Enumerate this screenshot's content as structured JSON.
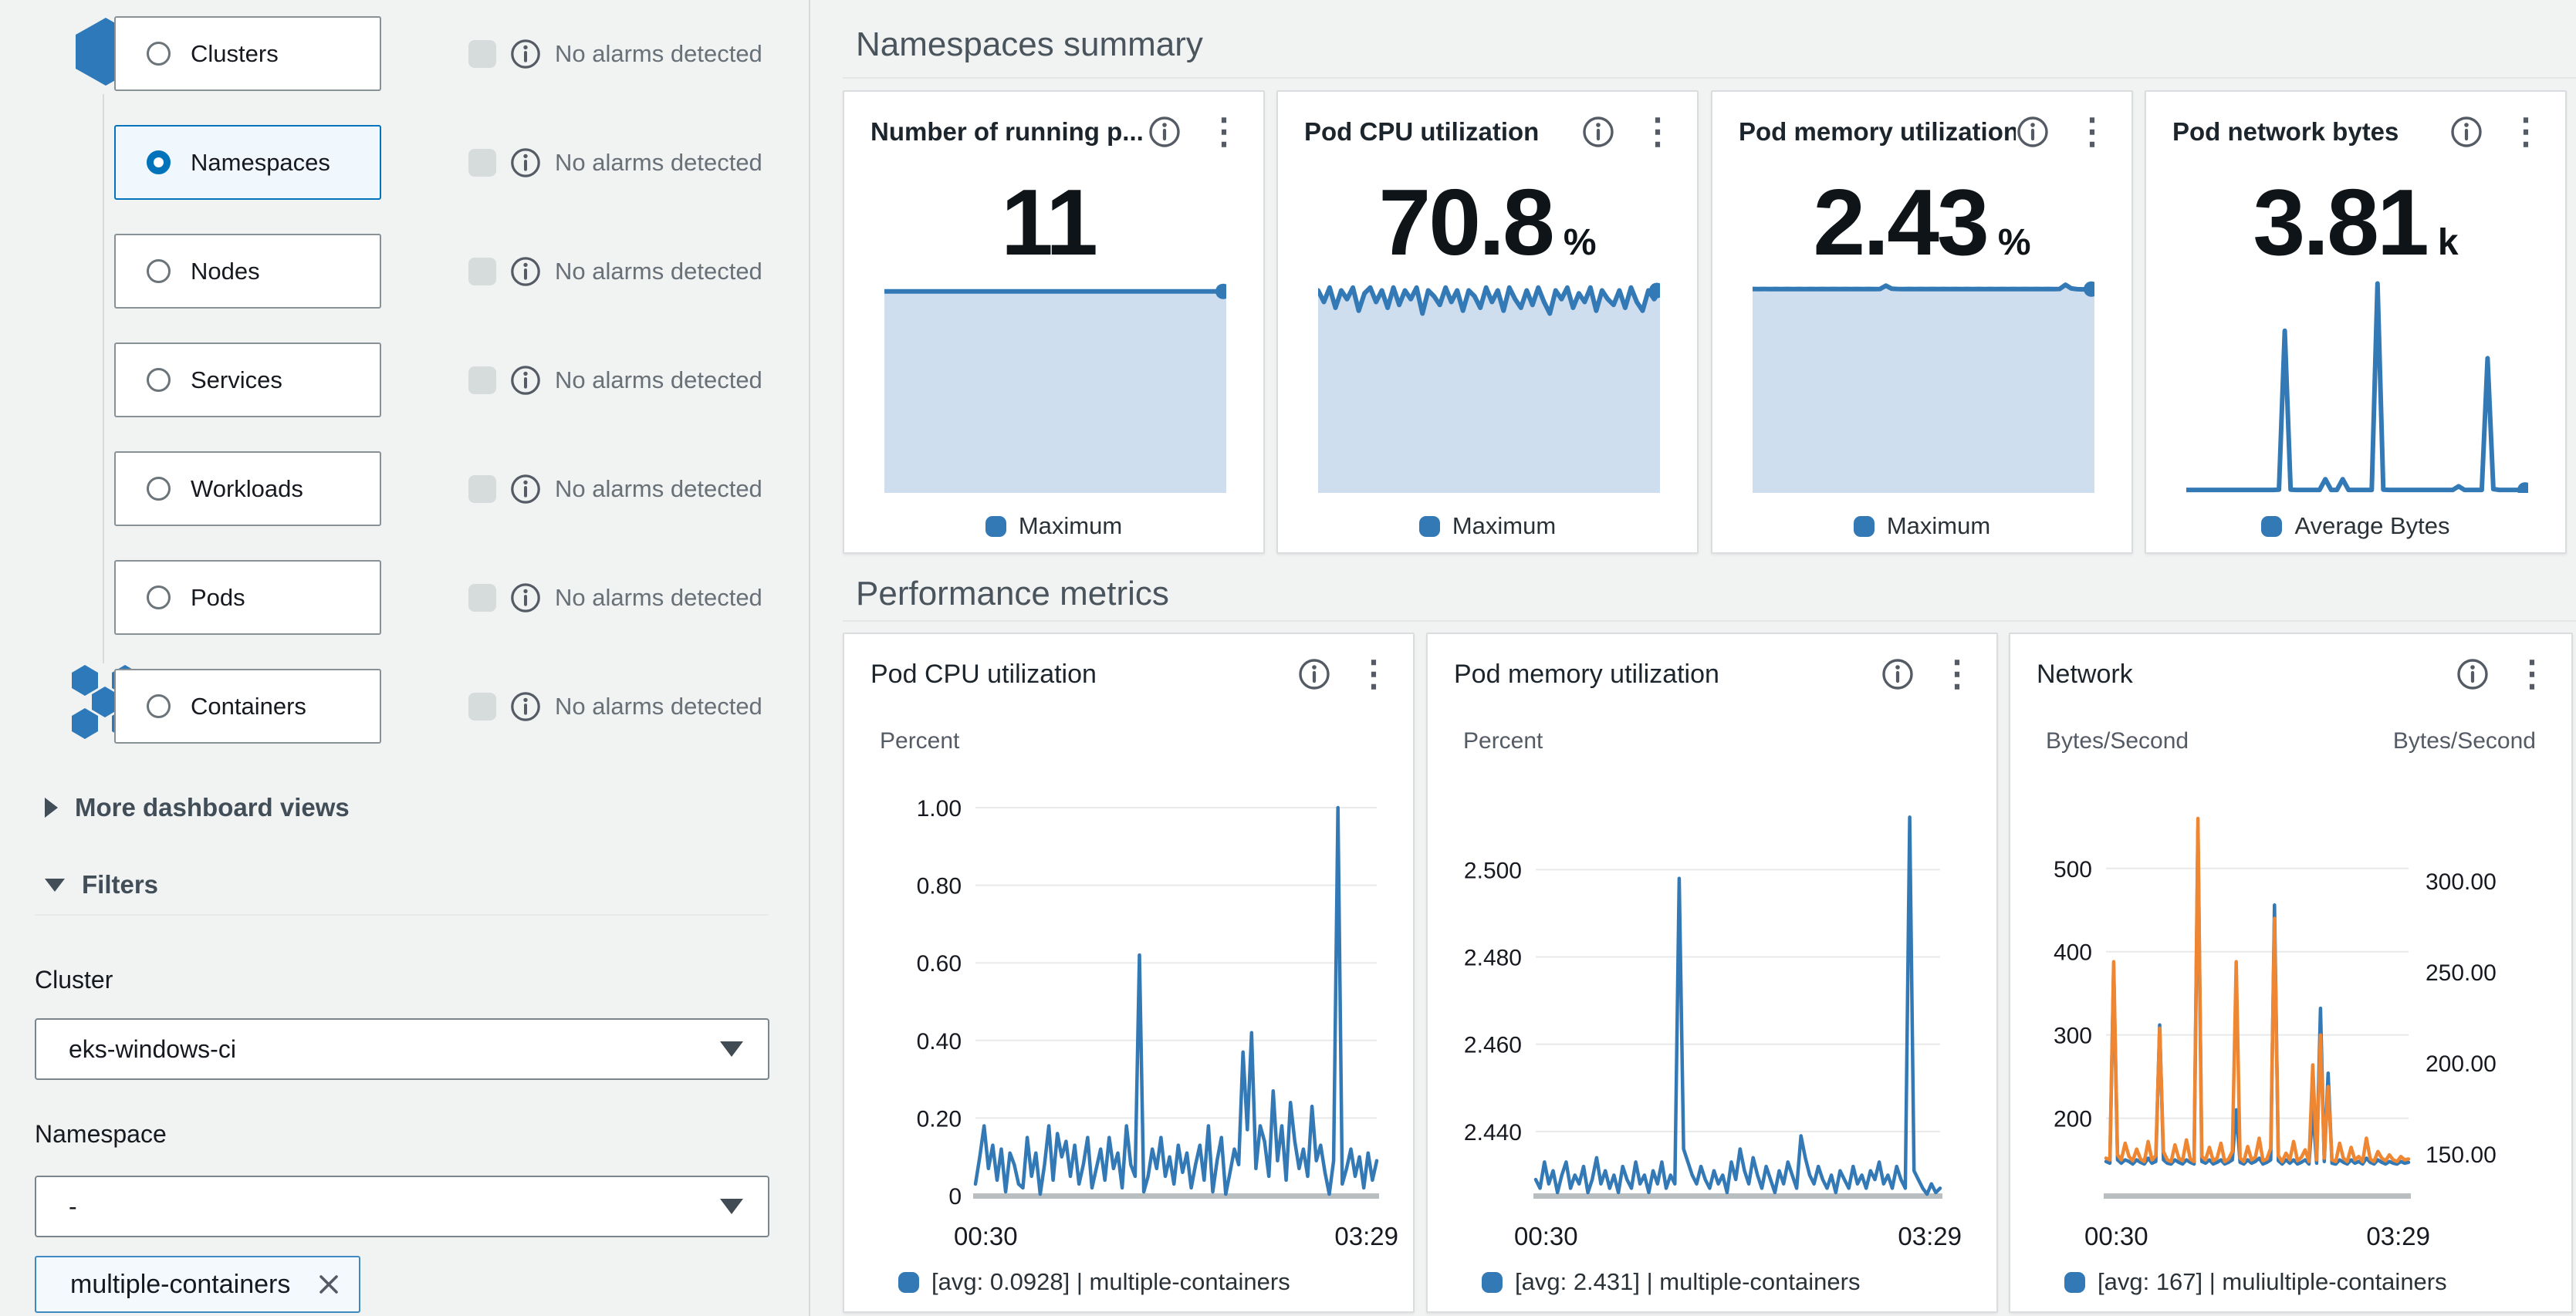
{
  "colors": {
    "chart_blue": "#3379b6",
    "chart_fill": "#cfdeee",
    "chart_orange": "#ee8632",
    "selected_blue": "#0073bb"
  },
  "sidebar": {
    "nav": [
      {
        "label": "Clusters",
        "alarm_text": "No alarms detected",
        "selected": false
      },
      {
        "label": "Namespaces",
        "alarm_text": "No alarms detected",
        "selected": true
      },
      {
        "label": "Nodes",
        "alarm_text": "No alarms detected",
        "selected": false
      },
      {
        "label": "Services",
        "alarm_text": "No alarms detected",
        "selected": false
      },
      {
        "label": "Workloads",
        "alarm_text": "No alarms detected",
        "selected": false
      },
      {
        "label": "Pods",
        "alarm_text": "No alarms detected",
        "selected": false
      },
      {
        "label": "Containers",
        "alarm_text": "No alarms detected",
        "selected": false
      }
    ],
    "more_views_label": "More dashboard views",
    "filters_label": "Filters",
    "cluster_label": "Cluster",
    "cluster_value": "eks-windows-ci",
    "namespace_label": "Namespace",
    "namespace_value": "-",
    "namespace_tag": "multiple-containers"
  },
  "sections": {
    "summary": "Namespaces summary",
    "performance": "Performance metrics"
  },
  "summary_cards": [
    {
      "title": "Number of running p...",
      "value": "11",
      "suffix": "",
      "legend": "Maximum",
      "spark": {
        "fill": true,
        "dot": true,
        "ylim": [
          0,
          12
        ],
        "values": [
          11,
          11,
          11,
          11,
          11,
          11,
          11,
          11,
          11,
          11,
          11,
          11,
          11,
          11,
          11,
          11,
          11,
          11,
          11,
          11,
          11,
          11,
          11,
          11,
          11,
          11,
          11,
          11,
          11,
          11,
          11,
          11,
          11,
          11,
          11,
          11,
          11,
          11,
          11,
          11
        ]
      }
    },
    {
      "title": "Pod CPU utilization",
      "value": "70.8",
      "suffix": "%",
      "legend": "Maximum",
      "spark": {
        "fill": true,
        "dot": true,
        "ylim": [
          0,
          76
        ],
        "values": [
          70,
          66,
          71,
          64,
          70,
          67,
          71,
          63,
          69,
          71,
          66,
          70,
          64,
          71,
          65,
          70,
          67,
          71,
          62,
          70,
          68,
          65,
          71,
          66,
          70,
          63,
          70,
          68,
          64,
          71,
          66,
          70,
          63,
          71,
          67,
          64,
          70,
          65,
          71,
          66,
          62,
          70,
          67,
          71,
          64,
          69,
          66,
          71,
          63,
          70,
          67,
          65,
          70,
          64,
          71,
          66,
          63,
          70,
          67,
          70
        ]
      }
    },
    {
      "title": "Pod memory utilization",
      "value": "2.43",
      "suffix": "%",
      "legend": "Maximum",
      "spark": {
        "fill": true,
        "dot": true,
        "ylim": [
          0,
          2.62
        ],
        "values": [
          2.431,
          2.43,
          2.431,
          2.43,
          2.431,
          2.43,
          2.431,
          2.43,
          2.431,
          2.43,
          2.431,
          2.43,
          2.431,
          2.43,
          2.431,
          2.43,
          2.431,
          2.43,
          2.431,
          2.43,
          2.431,
          2.43,
          2.431,
          2.47,
          2.434,
          2.431,
          2.43,
          2.431,
          2.43,
          2.431,
          2.43,
          2.431,
          2.43,
          2.431,
          2.43,
          2.431,
          2.43,
          2.431,
          2.43,
          2.431,
          2.43,
          2.431,
          2.43,
          2.431,
          2.43,
          2.431,
          2.43,
          2.431,
          2.43,
          2.431,
          2.43,
          2.431,
          2.43,
          2.431,
          2.48,
          2.437,
          2.428,
          2.426,
          2.43,
          2.429
        ]
      }
    },
    {
      "title": "Pod network bytes",
      "value": "3.81",
      "suffix": "k",
      "legend": "Average Bytes",
      "spark": {
        "fill": false,
        "dot": true,
        "ylim": [
          0,
          4000
        ],
        "values": [
          55,
          55,
          55,
          55,
          55,
          55,
          55,
          55,
          55,
          55,
          55,
          55,
          55,
          55,
          55,
          55,
          60,
          2950,
          60,
          55,
          55,
          55,
          55,
          55,
          250,
          55,
          55,
          250,
          55,
          55,
          55,
          55,
          55,
          3810,
          60,
          55,
          55,
          55,
          55,
          55,
          55,
          55,
          55,
          55,
          55,
          55,
          55,
          120,
          55,
          55,
          55,
          55,
          2450,
          70,
          55,
          55,
          55,
          55,
          55,
          55
        ]
      }
    }
  ],
  "perf_charts": [
    {
      "title": "Pod CPU utilization",
      "unit_left": "Percent",
      "unit_right": "",
      "x_left": "00:30",
      "x_right": "03:29",
      "legend": "[avg: 0.0928] | multiple-containers",
      "ylim": [
        0,
        1
      ],
      "yticks": [
        {
          "v": 1,
          "label": "1.00"
        },
        {
          "v": 0.8,
          "label": "0.80"
        },
        {
          "v": 0.6,
          "label": "0.60"
        },
        {
          "v": 0.4,
          "label": "0.40"
        },
        {
          "v": 0.2,
          "label": "0.20"
        },
        {
          "v": 0,
          "label": "0"
        }
      ],
      "right_ticks": [],
      "series": [
        {
          "color": "blue",
          "values": [
            0.03,
            0.1,
            0.18,
            0.07,
            0.13,
            0.04,
            0.12,
            0.01,
            0.11,
            0.08,
            0.03,
            0.02,
            0.15,
            0.05,
            0.11,
            0.0,
            0.08,
            0.18,
            0.04,
            0.16,
            0.1,
            0.14,
            0.05,
            0.13,
            0.03,
            0.08,
            0.15,
            0.02,
            0.07,
            0.12,
            0.04,
            0.15,
            0.07,
            0.11,
            0.02,
            0.18,
            0.08,
            0.05,
            0.62,
            0.01,
            0.05,
            0.12,
            0.07,
            0.15,
            0.05,
            0.1,
            0.03,
            0.13,
            0.06,
            0.11,
            0.02,
            0.08,
            0.13,
            0.04,
            0.18,
            0.01,
            0.09,
            0.15,
            0.0,
            0.06,
            0.12,
            0.08,
            0.37,
            0.17,
            0.42,
            0.07,
            0.18,
            0.14,
            0.05,
            0.27,
            0.09,
            0.18,
            0.04,
            0.24,
            0.14,
            0.07,
            0.12,
            0.05,
            0.23,
            0.09,
            0.13,
            0.06,
            0.0,
            0.09,
            1.0,
            0.03,
            0.07,
            0.12,
            0.05,
            0.1,
            0.02,
            0.11,
            0.04,
            0.09
          ]
        }
      ]
    },
    {
      "title": "Pod memory utilization",
      "unit_left": "Percent",
      "unit_right": "",
      "x_left": "00:30",
      "x_right": "03:29",
      "legend": "[avg: 2.431] | multiple-containers",
      "ylim": [
        2.4253,
        2.5142
      ],
      "yticks": [
        {
          "v": 2.5,
          "label": "2.500"
        },
        {
          "v": 2.48,
          "label": "2.480"
        },
        {
          "v": 2.46,
          "label": "2.460"
        },
        {
          "v": 2.44,
          "label": "2.440"
        }
      ],
      "right_ticks": [],
      "series": [
        {
          "color": "blue",
          "values": [
            2.429,
            2.427,
            2.433,
            2.428,
            2.431,
            2.426,
            2.43,
            2.433,
            2.427,
            2.43,
            2.428,
            2.432,
            2.426,
            2.429,
            2.434,
            2.428,
            2.431,
            2.427,
            2.43,
            2.426,
            2.432,
            2.429,
            2.427,
            2.433,
            2.428,
            2.43,
            2.426,
            2.431,
            2.428,
            2.433,
            2.427,
            2.43,
            2.428,
            2.498,
            2.436,
            2.433,
            2.43,
            2.428,
            2.432,
            2.429,
            2.427,
            2.431,
            2.428,
            2.43,
            2.426,
            2.433,
            2.429,
            2.436,
            2.431,
            2.428,
            2.434,
            2.43,
            2.427,
            2.432,
            2.429,
            2.426,
            2.431,
            2.428,
            2.433,
            2.43,
            2.427,
            2.439,
            2.434,
            2.43,
            2.428,
            2.432,
            2.429,
            2.427,
            2.43,
            2.426,
            2.431,
            2.429,
            2.427,
            2.432,
            2.428,
            2.43,
            2.427,
            2.431,
            2.429,
            2.433,
            2.428,
            2.43,
            2.427,
            2.432,
            2.429,
            2.427,
            2.512,
            2.431,
            2.429,
            2.427,
            2.425,
            2.428,
            2.426,
            2.427
          ]
        }
      ]
    },
    {
      "title": "Network",
      "unit_left": "Bytes/Second",
      "unit_right": "Bytes/Second",
      "x_left": "00:30",
      "x_right": "03:29",
      "legend": "[avg: 167] | muliultiple-containers",
      "ylim": [
        107,
        573
      ],
      "yticks": [
        {
          "v": 500,
          "label": "500"
        },
        {
          "v": 400,
          "label": "400"
        },
        {
          "v": 300,
          "label": "300"
        },
        {
          "v": 200,
          "label": "200"
        }
      ],
      "right_ticks": [
        {
          "y": 150,
          "label": "300.00"
        },
        {
          "y": 268,
          "label": "250.00"
        },
        {
          "y": 386,
          "label": "200.00"
        },
        {
          "y": 504,
          "label": "150.00"
        }
      ],
      "series": [
        {
          "color": "blue",
          "values": [
            148,
            146,
            380,
            150,
            146,
            150,
            148,
            145,
            150,
            147,
            145,
            152,
            146,
            148,
            312,
            150,
            146,
            145,
            150,
            147,
            145,
            150,
            147,
            145,
            548,
            148,
            146,
            150,
            145,
            147,
            150,
            145,
            147,
            150,
            210,
            147,
            145,
            150,
            146,
            148,
            152,
            145,
            147,
            150,
            456,
            149,
            145,
            150,
            146,
            150,
            145,
            147,
            150,
            145,
            210,
            146,
            332,
            148,
            254,
            146,
            145,
            150,
            147,
            145,
            150,
            146,
            148,
            145,
            152,
            147,
            145,
            150,
            147,
            145,
            148,
            146,
            145,
            148,
            146,
            147
          ]
        },
        {
          "color": "orange",
          "values": [
            152,
            150,
            388,
            156,
            150,
            170,
            154,
            149,
            163,
            151,
            148,
            172,
            150,
            155,
            308,
            160,
            150,
            148,
            168,
            152,
            149,
            174,
            151,
            148,
            560,
            154,
            150,
            165,
            149,
            152,
            170,
            148,
            151,
            160,
            388,
            152,
            148,
            166,
            150,
            153,
            176,
            149,
            151,
            164,
            440,
            155,
            148,
            158,
            150,
            172,
            149,
            153,
            162,
            148,
            264,
            150,
            300,
            152,
            238,
            150,
            148,
            170,
            152,
            148,
            165,
            150,
            154,
            148,
            176,
            151,
            148,
            160,
            152,
            149,
            156,
            150,
            148,
            154,
            150,
            151
          ]
        }
      ]
    }
  ]
}
